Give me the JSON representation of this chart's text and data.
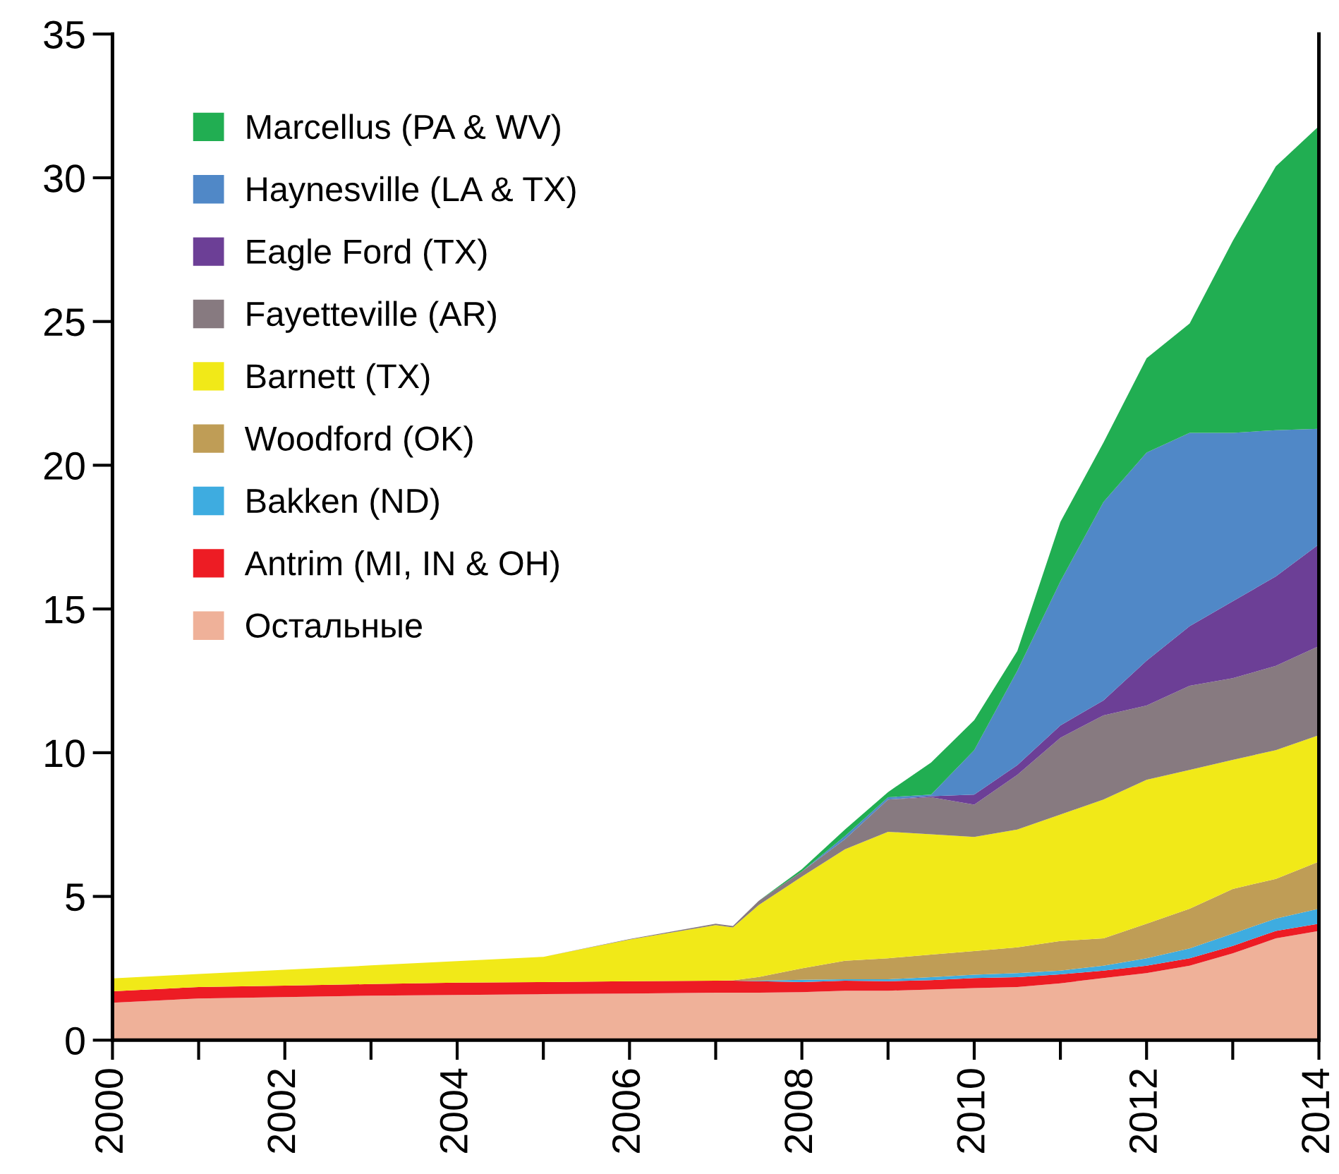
{
  "chart_data": {
    "type": "area",
    "stacked": true,
    "legend": "top left",
    "grid": false,
    "x": [
      2000,
      2001,
      2002,
      2003,
      2004,
      2005,
      2006,
      2007,
      2007.2,
      2007.5,
      2008,
      2008.5,
      2009,
      2009.5,
      2010,
      2010.5,
      2011,
      2011.5,
      2012,
      2012.5,
      2013,
      2013.5,
      2014
    ],
    "series": [
      {
        "name": "Остальные",
        "color": "#efb199",
        "values": [
          1.3,
          1.45,
          1.5,
          1.55,
          1.57,
          1.6,
          1.62,
          1.65,
          1.65,
          1.65,
          1.67,
          1.72,
          1.72,
          1.76,
          1.81,
          1.85,
          1.98,
          2.16,
          2.33,
          2.59,
          3.02,
          3.54,
          3.8
        ]
      },
      {
        "name": "Antrim (MI, IN & OH)",
        "color": "#ed1c24",
        "values": [
          0.4,
          0.4,
          0.4,
          0.4,
          0.43,
          0.42,
          0.43,
          0.42,
          0.42,
          0.4,
          0.35,
          0.35,
          0.33,
          0.33,
          0.35,
          0.34,
          0.31,
          0.26,
          0.26,
          0.26,
          0.26,
          0.26,
          0.25
        ]
      },
      {
        "name": "Bakken (ND)",
        "color": "#3eace0",
        "values": [
          0,
          0,
          0,
          0,
          0,
          0,
          0,
          0,
          0,
          0.02,
          0.08,
          0.05,
          0.07,
          0.1,
          0.12,
          0.14,
          0.13,
          0.17,
          0.26,
          0.34,
          0.43,
          0.43,
          0.52
        ]
      },
      {
        "name": "Woodford (OK)",
        "color": "#bf9d56",
        "values": [
          0,
          0,
          0,
          0,
          0,
          0,
          0,
          0,
          0.01,
          0.13,
          0.4,
          0.64,
          0.73,
          0.79,
          0.82,
          0.9,
          1.03,
          0.95,
          1.2,
          1.38,
          1.55,
          1.38,
          1.64
        ]
      },
      {
        "name": "Barnett (TX)",
        "color": "#f1e918",
        "values": [
          0.45,
          0.45,
          0.55,
          0.65,
          0.75,
          0.88,
          1.45,
          1.93,
          1.84,
          2.5,
          3.19,
          3.88,
          4.4,
          4.18,
          3.97,
          4.1,
          4.4,
          4.83,
          5.01,
          4.83,
          4.49,
          4.48,
          4.4
        ]
      },
      {
        "name": "Fayetteville (AR)",
        "color": "#877a80",
        "values": [
          0,
          0,
          0,
          0,
          0,
          0,
          0.02,
          0.05,
          0.05,
          0.15,
          0.18,
          0.35,
          1.12,
          1.29,
          1.12,
          1.9,
          2.67,
          2.93,
          2.58,
          2.93,
          2.84,
          2.93,
          3.1
        ]
      },
      {
        "name": "Eagle Ford (TX)",
        "color": "#6c3f96",
        "values": [
          0,
          0,
          0,
          0,
          0,
          0,
          0,
          0,
          0,
          0,
          0,
          0,
          0,
          0.04,
          0.35,
          0.34,
          0.43,
          0.52,
          1.56,
          2.07,
          2.68,
          3.11,
          3.54
        ]
      },
      {
        "name": "Haynesville (LA & TX)",
        "color": "#5088c7",
        "values": [
          0,
          0,
          0,
          0,
          0,
          0,
          0,
          0,
          0,
          0,
          0,
          0.11,
          0.08,
          0.05,
          1.55,
          3.28,
          5.01,
          6.9,
          7.24,
          6.73,
          5.86,
          5.09,
          4.02
        ]
      },
      {
        "name": "Marcellus (PA & WV)",
        "color": "#21ae52",
        "values": [
          0,
          0,
          0,
          0,
          0,
          0,
          0,
          0,
          0,
          0,
          0.08,
          0.23,
          0.18,
          1.12,
          1.04,
          0.69,
          2.07,
          2.07,
          3.28,
          3.8,
          6.67,
          9.18,
          10.53
        ]
      }
    ],
    "xlim": [
      2000,
      2014
    ],
    "ylim": [
      0,
      35
    ],
    "xticks": [
      2000,
      {
        "value": 2001,
        "label": null
      },
      2002,
      {
        "value": 2003,
        "label": null
      },
      2004,
      {
        "value": 2005,
        "label": null
      },
      2006,
      {
        "value": 2007,
        "label": null
      },
      2008,
      {
        "value": 2009,
        "label": null
      },
      2010,
      {
        "value": 2011,
        "label": null
      },
      2012,
      {
        "value": 2013,
        "label": null
      },
      2014
    ],
    "yticks": [
      0,
      5,
      10,
      15,
      20,
      25,
      30,
      35
    ]
  }
}
